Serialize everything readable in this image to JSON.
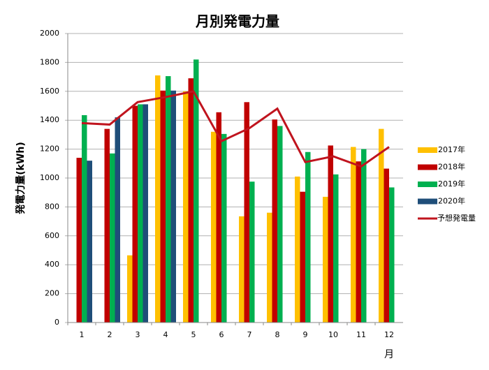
{
  "chart_data": {
    "type": "bar",
    "title": "月別発電力量",
    "y_label": "発電力量(kWh)",
    "x_label": "月",
    "categories": [
      "1",
      "2",
      "3",
      "4",
      "5",
      "6",
      "7",
      "8",
      "9",
      "10",
      "11",
      "12"
    ],
    "series": [
      {
        "name": "2017年",
        "color": "#ffc000",
        "values": [
          null,
          null,
          465,
          1710,
          1600,
          1320,
          735,
          760,
          1010,
          870,
          1215,
          1340
        ]
      },
      {
        "name": "2018年",
        "color": "#c00000",
        "values": [
          1140,
          1340,
          1500,
          1605,
          1690,
          1455,
          1525,
          1405,
          905,
          1225,
          1115,
          1065
        ]
      },
      {
        "name": "2019年",
        "color": "#00b050",
        "values": [
          1435,
          1170,
          1510,
          1705,
          1820,
          1305,
          975,
          1360,
          1180,
          1025,
          1200,
          935
        ]
      },
      {
        "name": "2020年",
        "color": "#1f4e79",
        "values": [
          1120,
          1420,
          1510,
          1605,
          null,
          null,
          null,
          null,
          null,
          null,
          null,
          null
        ]
      },
      {
        "name": "予想発電量",
        "type": "line",
        "color": "#c0141e",
        "values": [
          1380,
          1370,
          1525,
          1560,
          1600,
          1255,
          1345,
          1480,
          1110,
          1150,
          1080,
          1215
        ]
      }
    ],
    "ylim": [
      0,
      2000
    ],
    "yticks": [
      0,
      200,
      400,
      600,
      800,
      1000,
      1200,
      1400,
      1600,
      1800,
      2000
    ],
    "grid": true,
    "legend": "right"
  }
}
